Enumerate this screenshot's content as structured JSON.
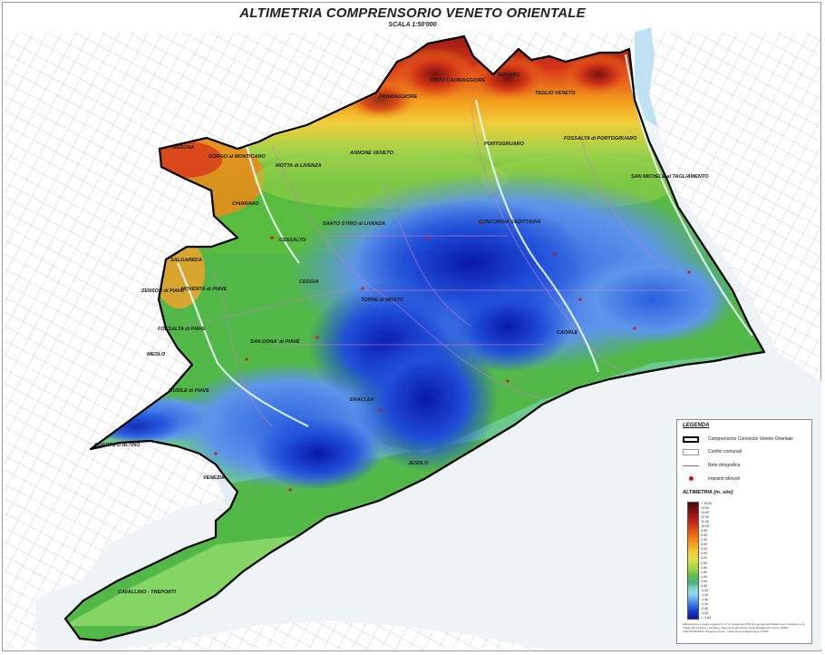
{
  "title": "ALTIMETRIA COMPRENSORIO VENETO ORIENTALE",
  "scale": "SCALA 1:50'000",
  "places": [
    {
      "id": "pramaggiore",
      "name": "PRAMAGGIORE"
    },
    {
      "id": "cinto",
      "name": "CINTO CAOMAGGIORE"
    },
    {
      "id": "gruaro",
      "name": "GRUARO"
    },
    {
      "id": "teglio",
      "name": "TEGLIO VENETO"
    },
    {
      "id": "portogruaro",
      "name": "PORTOGRUARO"
    },
    {
      "id": "fossalta-porto",
      "name": "FOSSALTA di PORTOGRUARO"
    },
    {
      "id": "san-michele",
      "name": "SAN MICHELE al TAGLIAMENTO"
    },
    {
      "id": "meduna",
      "name": "MEDUNA"
    },
    {
      "id": "gorgo",
      "name": "GORGO al MONTICANO"
    },
    {
      "id": "motta",
      "name": "MOTTA di LIVENZA"
    },
    {
      "id": "annone",
      "name": "ANNONE VENETO"
    },
    {
      "id": "chiarano",
      "name": "CHIARANO"
    },
    {
      "id": "santo-stino",
      "name": "SANTO STINO di LIVENZA"
    },
    {
      "id": "concordia",
      "name": "CONCORDIA SAGITTARIA"
    },
    {
      "id": "cessalto",
      "name": "CESSALTO"
    },
    {
      "id": "salgareda",
      "name": "SALGAREDA"
    },
    {
      "id": "zenson",
      "name": "ZENSON di PIAVE"
    },
    {
      "id": "noventa",
      "name": "NOVENTA di PIAVE"
    },
    {
      "id": "ceggia",
      "name": "CEGGIA"
    },
    {
      "id": "torre",
      "name": "TORRE di MOSTO"
    },
    {
      "id": "fossalta-piave",
      "name": "FOSSALTA di PIAVE"
    },
    {
      "id": "san-dona",
      "name": "SAN DONA' di PIAVE"
    },
    {
      "id": "caorle",
      "name": "CAORLE"
    },
    {
      "id": "meolo",
      "name": "MEOLO"
    },
    {
      "id": "musile",
      "name": "MUSILE di PIAVE"
    },
    {
      "id": "eraclea",
      "name": "ERACLEA"
    },
    {
      "id": "quarto",
      "name": "QUARTO D'ALTINO"
    },
    {
      "id": "venezia",
      "name": "VENEZIA"
    },
    {
      "id": "jesolo",
      "name": "JESOLO"
    },
    {
      "id": "cavallino",
      "name": "CAVALLINO - TREPORTI"
    }
  ],
  "legend": {
    "heading": "LEGENDA",
    "items": [
      {
        "label": "Comprensorio Consorzio Veneto Orientale",
        "symbol": "boundary"
      },
      {
        "label": "Confini comunali",
        "symbol": "municipal"
      },
      {
        "label": "Rete idrografica",
        "symbol": "hydro"
      },
      {
        "label": "Impianti idrovori",
        "symbol": "pumps"
      }
    ],
    "altimetry_title": "ALTIMETRIA   [m. slm]",
    "ticks": [
      "> 15.00",
      "14.00",
      "13.00",
      "12.00",
      "11.00",
      "10.00",
      "9.00",
      "8.00",
      "7.00",
      "6.00",
      "5.00",
      "4.00",
      "3.00",
      "2.50",
      "2.00",
      "1.50",
      "1.00",
      "0.50",
      "0.00",
      "-0.50",
      "-1.00",
      "-1.50",
      "-2.00",
      "-2.50",
      "-3.00",
      "< -3.50"
    ],
    "fine_print": "Elaborazione a maglia regolare 5 x 5 m ricavata da DTM di proprietà del Ministero per l'Ambiente e la Tutela del Territorio e del Mare. Sistema di riferimento Gauss Boaga Fuso Ovest. BASE CARTOGRAFICA: Regione Veneto - Carta Tecnica Regionale 1:10'000."
  },
  "colors": {
    "water": "#bfe3f2",
    "outline": "#000000",
    "background_network": "#b9b9b9"
  }
}
